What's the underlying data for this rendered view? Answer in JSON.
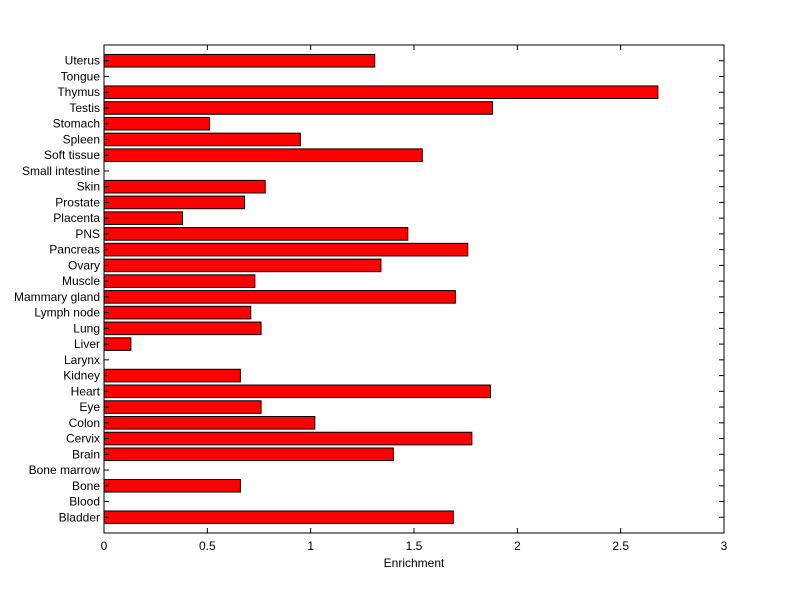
{
  "chart_data": {
    "type": "bar",
    "orientation": "horizontal",
    "xlabel": "Enrichment",
    "ylabel": "",
    "xlim": [
      0,
      3
    ],
    "xticks": [
      0,
      0.5,
      1,
      1.5,
      2,
      2.5,
      3
    ],
    "xtick_labels": [
      "0",
      "0.5",
      "1",
      "1.5",
      "2",
      "2.5",
      "3"
    ],
    "grid": false,
    "bar_color": "#ff0000",
    "categories": [
      "Uterus",
      "Tongue",
      "Thymus",
      "Testis",
      "Stomach",
      "Spleen",
      "Soft tissue",
      "Small intestine",
      "Skin",
      "Prostate",
      "Placenta",
      "PNS",
      "Pancreas",
      "Ovary",
      "Muscle",
      "Mammary gland",
      "Lymph node",
      "Lung",
      "Liver",
      "Larynx",
      "Kidney",
      "Heart",
      "Eye",
      "Colon",
      "Cervix",
      "Brain",
      "Bone marrow",
      "Bone",
      "Blood",
      "Bladder"
    ],
    "values": [
      1.31,
      0,
      2.68,
      1.88,
      0.51,
      0.95,
      1.54,
      0,
      0.78,
      0.68,
      0.38,
      1.47,
      1.76,
      1.34,
      0.73,
      1.7,
      0.71,
      0.76,
      0.13,
      0,
      0.66,
      1.87,
      0.76,
      1.02,
      1.78,
      1.4,
      0,
      0.66,
      0,
      1.69
    ]
  }
}
